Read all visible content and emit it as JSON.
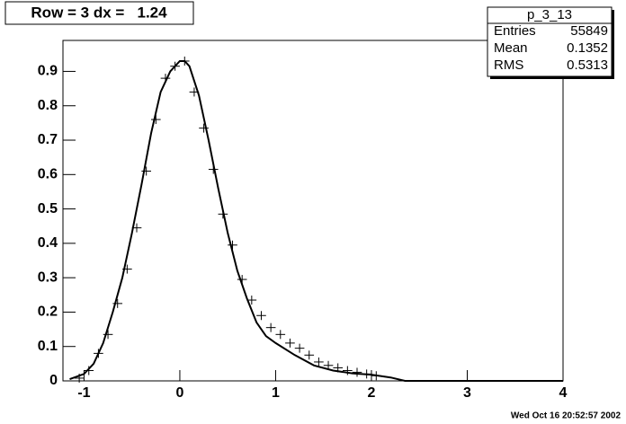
{
  "chart_data": {
    "type": "errorbar_fit",
    "title": "Row = 3 dx =   1.24",
    "x": [
      -1.05,
      -0.95,
      -0.85,
      -0.75,
      -0.65,
      -0.55,
      -0.45,
      -0.35,
      -0.25,
      -0.15,
      -0.05,
      0.05,
      0.15,
      0.25,
      0.35,
      0.45,
      0.55,
      0.65,
      0.75,
      0.85,
      0.95,
      1.05,
      1.15,
      1.25,
      1.35,
      1.45,
      1.55,
      1.65,
      1.75,
      1.85,
      1.95,
      2.05
    ],
    "values": [
      0.008,
      0.03,
      0.08,
      0.135,
      0.225,
      0.325,
      0.445,
      0.61,
      0.76,
      0.88,
      0.915,
      0.93,
      0.84,
      0.735,
      0.615,
      0.485,
      0.395,
      0.295,
      0.235,
      0.19,
      0.155,
      0.135,
      0.11,
      0.095,
      0.075,
      0.055,
      0.045,
      0.038,
      0.03,
      0.025,
      0.02,
      0.015
    ],
    "fit": {
      "x": [
        -1.15,
        -1.0,
        -0.9,
        -0.8,
        -0.7,
        -0.6,
        -0.5,
        -0.4,
        -0.3,
        -0.2,
        -0.1,
        0,
        0.05,
        0.1,
        0.2,
        0.3,
        0.4,
        0.5,
        0.6,
        0.7,
        0.8,
        0.9,
        1.0,
        1.2,
        1.4,
        1.6,
        1.8,
        2.0,
        2.2,
        2.35,
        4.0
      ],
      "values": [
        0.005,
        0.02,
        0.05,
        0.11,
        0.2,
        0.3,
        0.43,
        0.57,
        0.72,
        0.84,
        0.9,
        0.93,
        0.93,
        0.915,
        0.83,
        0.7,
        0.56,
        0.43,
        0.32,
        0.24,
        0.17,
        0.13,
        0.11,
        0.075,
        0.045,
        0.03,
        0.022,
        0.018,
        0.01,
        0,
        0
      ]
    },
    "xlim": [
      -1.22,
      4.0
    ],
    "ylim": [
      0,
      0.99
    ],
    "xticks": [
      -1,
      0,
      1,
      2,
      3,
      4
    ],
    "yticks": [
      0,
      0.1,
      0.2,
      0.3,
      0.4,
      0.5,
      0.6,
      0.7,
      0.8,
      0.9
    ],
    "color": "#000000",
    "stats": {
      "title": "p_3_13",
      "rows": [
        [
          "Entries",
          55849
        ],
        [
          "Mean",
          0.1352
        ],
        [
          "RMS",
          0.5313
        ]
      ]
    },
    "footer": "Wed Oct 16 20:52:57 2002"
  }
}
